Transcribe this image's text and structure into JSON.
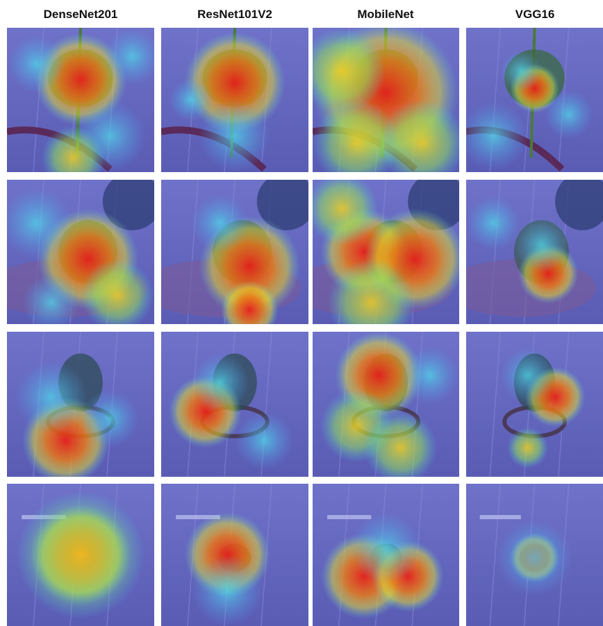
{
  "columns": [
    "DenseNet201",
    "ResNet101V2",
    "MobileNet",
    "VGG16"
  ]
}
